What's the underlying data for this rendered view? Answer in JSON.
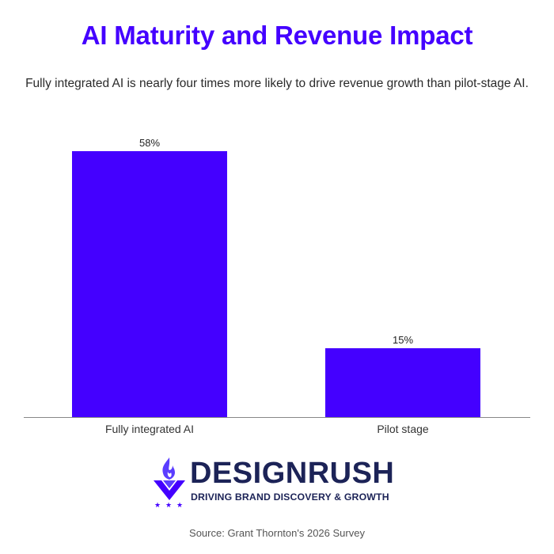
{
  "header": {
    "title": "AI Maturity and Revenue Impact",
    "subtitle": "Fully integrated AI is nearly four times more likely to drive revenue growth than pilot-stage AI."
  },
  "chart_data": {
    "type": "bar",
    "title": "AI Maturity and Revenue Impact",
    "subtitle": "Fully integrated AI is nearly four times more likely to drive revenue growth than pilot-stage AI.",
    "categories": [
      "Fully integrated AI",
      "Pilot stage"
    ],
    "values": [
      58,
      15
    ],
    "value_labels": [
      "58%",
      "15%"
    ],
    "xlabel": "",
    "ylabel": "",
    "ylim": [
      0,
      58
    ],
    "grid": false,
    "legend": null,
    "bar_color": "#4400ff"
  },
  "colors": {
    "accent": "#4400ff",
    "brand_navy": "#1c2357"
  },
  "logo": {
    "wordmark": "DESIGNRUSH",
    "tagline": "DRIVING BRAND DISCOVERY & GROWTH",
    "icon": "torch-v-icon"
  },
  "footer": {
    "source": "Source: Grant Thornton's 2026 Survey"
  }
}
